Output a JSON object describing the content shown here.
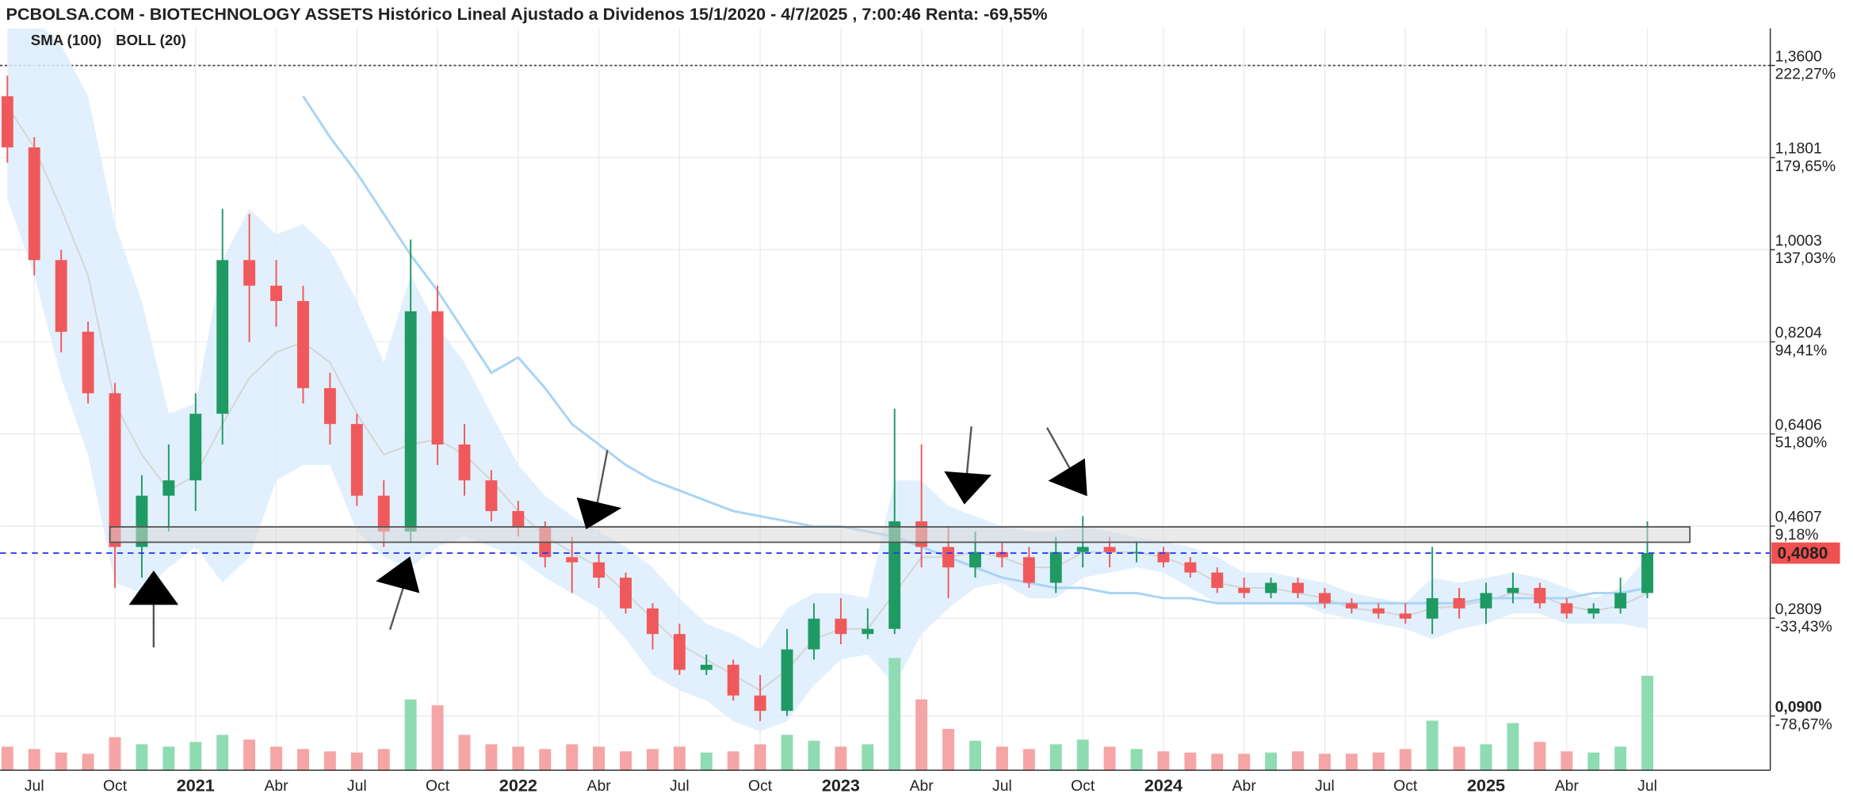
{
  "chart_data": {
    "type": "candlestick",
    "title": "PCBOLSA.COM - BIOTECHNOLOGY ASSETS Histórico Lineal Ajustado a Dividenos 15/1/2020 - 4/7/2025 , 7:00:46 Renta: -69,55%",
    "categories": [
      null,
      "Jul",
      null,
      null,
      "Oct",
      null,
      null,
      "2021",
      null,
      null,
      "Abr",
      null,
      null,
      "Jul",
      null,
      null,
      "Oct",
      null,
      null,
      "2022",
      null,
      null,
      "Abr",
      null,
      null,
      "Jul",
      null,
      null,
      "Oct",
      null,
      null,
      "2023",
      null,
      null,
      "Abr",
      null,
      null,
      "Jul",
      null,
      null,
      "Oct",
      null,
      null,
      "2024",
      null,
      null,
      "Abr",
      null,
      null,
      "Jul",
      null,
      null,
      "Oct",
      null,
      null,
      "2025",
      null,
      null,
      "Abr",
      null,
      null,
      "Jul"
    ],
    "open": [
      1.3,
      1.2,
      0.98,
      0.84,
      0.72,
      0.42,
      0.52,
      0.55,
      0.68,
      0.98,
      0.93,
      0.9,
      0.73,
      0.66,
      0.52,
      0.45,
      0.88,
      0.62,
      0.55,
      0.49,
      0.46,
      0.4,
      0.39,
      0.36,
      0.3,
      0.25,
      0.18,
      0.19,
      0.13,
      0.1,
      0.22,
      0.28,
      0.25,
      0.26,
      0.47,
      0.42,
      0.38,
      0.41,
      0.4,
      0.35,
      0.41,
      0.42,
      0.41,
      0.41,
      0.39,
      0.37,
      0.34,
      0.33,
      0.35,
      0.33,
      0.31,
      0.3,
      0.29,
      0.28,
      0.32,
      0.3,
      0.33,
      0.34,
      0.31,
      0.29,
      0.3,
      0.33
    ],
    "high": [
      1.34,
      1.22,
      1.0,
      0.86,
      0.74,
      0.56,
      0.62,
      0.72,
      1.08,
      1.07,
      0.98,
      0.93,
      0.76,
      0.68,
      0.55,
      1.02,
      0.93,
      0.66,
      0.57,
      0.51,
      0.47,
      0.44,
      0.41,
      0.37,
      0.31,
      0.27,
      0.21,
      0.2,
      0.17,
      0.26,
      0.31,
      0.32,
      0.3,
      0.69,
      0.62,
      0.46,
      0.45,
      0.43,
      0.42,
      0.44,
      0.48,
      0.44,
      0.43,
      0.42,
      0.4,
      0.38,
      0.36,
      0.36,
      0.36,
      0.34,
      0.32,
      0.31,
      0.31,
      0.42,
      0.34,
      0.35,
      0.37,
      0.35,
      0.32,
      0.31,
      0.36,
      0.47
    ],
    "low": [
      1.17,
      0.95,
      0.8,
      0.7,
      0.34,
      0.36,
      0.45,
      0.49,
      0.62,
      0.82,
      0.85,
      0.7,
      0.62,
      0.5,
      0.42,
      0.43,
      0.58,
      0.52,
      0.47,
      0.44,
      0.38,
      0.33,
      0.34,
      0.29,
      0.22,
      0.17,
      0.17,
      0.12,
      0.08,
      0.09,
      0.2,
      0.23,
      0.24,
      0.25,
      0.38,
      0.32,
      0.36,
      0.38,
      0.34,
      0.33,
      0.38,
      0.38,
      0.39,
      0.38,
      0.36,
      0.33,
      0.32,
      0.32,
      0.32,
      0.3,
      0.29,
      0.28,
      0.27,
      0.25,
      0.28,
      0.27,
      0.31,
      0.3,
      0.28,
      0.28,
      0.29,
      0.32
    ],
    "close": [
      1.2,
      0.98,
      0.84,
      0.72,
      0.42,
      0.52,
      0.55,
      0.68,
      0.98,
      0.93,
      0.9,
      0.73,
      0.66,
      0.52,
      0.45,
      0.88,
      0.62,
      0.55,
      0.49,
      0.46,
      0.4,
      0.39,
      0.36,
      0.3,
      0.25,
      0.18,
      0.19,
      0.13,
      0.1,
      0.22,
      0.28,
      0.25,
      0.26,
      0.47,
      0.42,
      0.38,
      0.41,
      0.4,
      0.35,
      0.41,
      0.42,
      0.41,
      0.41,
      0.39,
      0.37,
      0.34,
      0.33,
      0.35,
      0.33,
      0.31,
      0.3,
      0.29,
      0.28,
      0.32,
      0.3,
      0.33,
      0.34,
      0.31,
      0.29,
      0.3,
      0.33,
      0.408
    ],
    "volume": [
      20,
      18,
      15,
      14,
      28,
      22,
      20,
      24,
      30,
      26,
      20,
      18,
      16,
      15,
      18,
      60,
      55,
      30,
      22,
      20,
      18,
      22,
      20,
      16,
      18,
      20,
      15,
      16,
      22,
      30,
      25,
      20,
      22,
      95,
      60,
      35,
      25,
      20,
      18,
      22,
      26,
      20,
      18,
      16,
      15,
      14,
      14,
      15,
      16,
      14,
      14,
      15,
      18,
      42,
      20,
      22,
      40,
      24,
      16,
      15,
      20,
      80
    ],
    "up_color": "#1f9a63",
    "down_color": "#f0595b",
    "volume_up_color": "#8fdcb2",
    "volume_down_color": "#f5a5a5",
    "sma": {
      "name": "SMA (100)",
      "color": "#a9d4f5",
      "values": [
        null,
        null,
        null,
        null,
        null,
        null,
        null,
        null,
        null,
        null,
        null,
        1.3,
        1.22,
        1.15,
        1.07,
        0.99,
        0.92,
        0.84,
        0.76,
        0.79,
        0.73,
        0.66,
        0.62,
        0.58,
        0.55,
        0.53,
        0.51,
        0.49,
        0.48,
        0.47,
        0.46,
        0.46,
        0.45,
        0.44,
        0.42,
        0.4,
        0.38,
        0.36,
        0.35,
        0.34,
        0.34,
        0.33,
        0.33,
        0.32,
        0.32,
        0.31,
        0.31,
        0.31,
        0.31,
        0.31,
        0.31,
        0.31,
        0.31,
        0.31,
        0.31,
        0.32,
        0.32,
        0.32,
        0.32,
        0.33,
        0.33,
        0.34
      ]
    },
    "boll": {
      "name": "BOLL (20)",
      "color": "#d4d4d4",
      "band_color": "#dcedfb",
      "upper": [
        1.45,
        1.45,
        1.4,
        1.3,
        1.05,
        0.9,
        0.68,
        0.7,
        0.98,
        1.08,
        1.03,
        1.05,
        1.0,
        0.9,
        0.78,
        0.95,
        0.85,
        0.78,
        0.68,
        0.58,
        0.52,
        0.48,
        0.45,
        0.42,
        0.38,
        0.32,
        0.27,
        0.25,
        0.22,
        0.3,
        0.33,
        0.33,
        0.32,
        0.55,
        0.55,
        0.5,
        0.48,
        0.46,
        0.45,
        0.45,
        0.46,
        0.45,
        0.44,
        0.43,
        0.42,
        0.4,
        0.37,
        0.37,
        0.36,
        0.35,
        0.33,
        0.32,
        0.31,
        0.36,
        0.35,
        0.36,
        0.37,
        0.36,
        0.34,
        0.32,
        0.34,
        0.4
      ],
      "lower": [
        1.1,
        0.95,
        0.75,
        0.6,
        0.35,
        0.33,
        0.38,
        0.42,
        0.35,
        0.4,
        0.55,
        0.58,
        0.58,
        0.45,
        0.4,
        0.38,
        0.42,
        0.44,
        0.42,
        0.4,
        0.36,
        0.33,
        0.3,
        0.24,
        0.17,
        0.14,
        0.12,
        0.08,
        0.06,
        0.08,
        0.15,
        0.2,
        0.21,
        0.15,
        0.25,
        0.3,
        0.34,
        0.35,
        0.32,
        0.32,
        0.36,
        0.37,
        0.38,
        0.37,
        0.34,
        0.31,
        0.31,
        0.31,
        0.31,
        0.29,
        0.28,
        0.27,
        0.26,
        0.24,
        0.26,
        0.27,
        0.29,
        0.29,
        0.27,
        0.27,
        0.27,
        0.26
      ],
      "middle": [
        1.28,
        1.2,
        1.08,
        0.95,
        0.7,
        0.6,
        0.53,
        0.56,
        0.66,
        0.75,
        0.8,
        0.82,
        0.78,
        0.68,
        0.6,
        0.62,
        0.63,
        0.6,
        0.55,
        0.49,
        0.44,
        0.41,
        0.38,
        0.33,
        0.28,
        0.23,
        0.2,
        0.17,
        0.14,
        0.18,
        0.24,
        0.26,
        0.26,
        0.33,
        0.4,
        0.4,
        0.41,
        0.4,
        0.38,
        0.38,
        0.41,
        0.41,
        0.41,
        0.4,
        0.38,
        0.35,
        0.34,
        0.34,
        0.33,
        0.32,
        0.3,
        0.295,
        0.285,
        0.3,
        0.305,
        0.315,
        0.33,
        0.325,
        0.305,
        0.295,
        0.305,
        0.33
      ]
    },
    "ylim": [
      -0.016,
      1.437
    ],
    "yticks": [
      {
        "value": 1.36,
        "label": "1,3600"
      },
      {
        "value": 1.1801,
        "label": "1,1801"
      },
      {
        "value": 1.0003,
        "label": "1,0003"
      },
      {
        "value": 0.8204,
        "label": "0,8204"
      },
      {
        "value": 0.6406,
        "label": "0,6406"
      },
      {
        "value": 0.4607,
        "label": "0,4607"
      },
      {
        "value": 0.2809,
        "label": "0,2809"
      },
      {
        "value": 0.09,
        "label": "0,0900"
      }
    ],
    "y2lim": [
      -103.79,
      240.51
    ],
    "y2ticks": [
      {
        "value": 222.27,
        "label": "222,27%"
      },
      {
        "value": 179.65,
        "label": "179,65%"
      },
      {
        "value": 137.03,
        "label": "137,03%"
      },
      {
        "value": 94.41,
        "label": "94,41%"
      },
      {
        "value": 51.8,
        "label": "51,80%"
      },
      {
        "value": 9.18,
        "label": "9,18%"
      },
      {
        "value": -33.43,
        "label": "-33,43%"
      },
      {
        "value": -78.67,
        "label": "-78,67%"
      }
    ],
    "last_price": {
      "value": 0.408,
      "label": "0,4080"
    },
    "high_line": 1.36,
    "grid": true
  }
}
